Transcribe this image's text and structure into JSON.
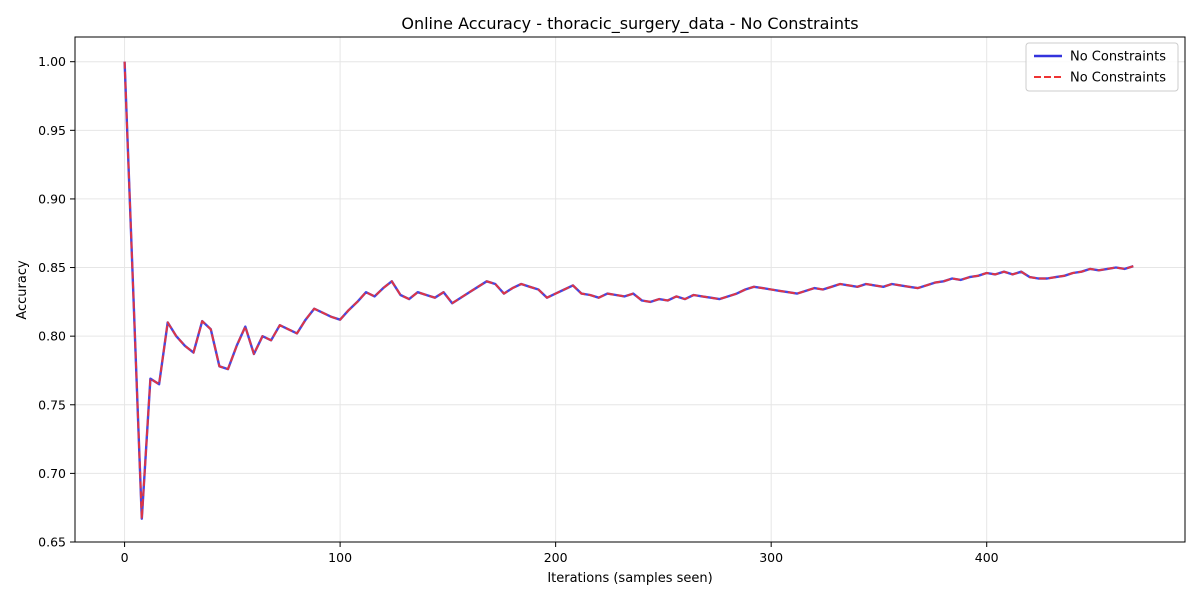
{
  "chart_data": {
    "type": "line",
    "title": "Online Accuracy - thoracic_surgery_data - No Constraints",
    "xlabel": "Iterations (samples seen)",
    "ylabel": "Accuracy",
    "xlim": [
      -23,
      492
    ],
    "ylim": [
      0.65,
      1.018
    ],
    "xticks": [
      0,
      100,
      200,
      300,
      400
    ],
    "yticks": [
      0.65,
      0.7,
      0.75,
      0.8,
      0.85,
      0.9,
      0.95,
      1.0
    ],
    "ytick_labels": [
      "0.65",
      "0.70",
      "0.75",
      "0.80",
      "0.85",
      "0.90",
      "0.95",
      "1.00"
    ],
    "grid": true,
    "legend_position": "top-right",
    "series": [
      {
        "name": "No Constraints",
        "color": "#3333dd",
        "style": "solid",
        "x": [
          0,
          8,
          12,
          16,
          20,
          24,
          28,
          32,
          36,
          40,
          44,
          48,
          52,
          56,
          60,
          64,
          68,
          72,
          76,
          80,
          84,
          88,
          92,
          96,
          100,
          104,
          108,
          112,
          116,
          120,
          124,
          128,
          132,
          136,
          140,
          144,
          148,
          152,
          156,
          160,
          164,
          168,
          172,
          176,
          180,
          184,
          188,
          192,
          196,
          200,
          204,
          208,
          212,
          216,
          220,
          224,
          228,
          232,
          236,
          240,
          244,
          248,
          252,
          256,
          260,
          264,
          268,
          272,
          276,
          280,
          284,
          288,
          292,
          296,
          300,
          304,
          308,
          312,
          316,
          320,
          324,
          328,
          332,
          336,
          340,
          344,
          348,
          352,
          356,
          360,
          364,
          368,
          372,
          376,
          380,
          384,
          388,
          392,
          396,
          400,
          404,
          408,
          412,
          416,
          420,
          424,
          428,
          432,
          436,
          440,
          444,
          448,
          452,
          456,
          460,
          464,
          468
        ],
        "values": [
          1.0,
          0.667,
          0.769,
          0.765,
          0.81,
          0.8,
          0.793,
          0.788,
          0.811,
          0.805,
          0.778,
          0.776,
          0.793,
          0.807,
          0.787,
          0.8,
          0.797,
          0.808,
          0.805,
          0.802,
          0.812,
          0.82,
          0.817,
          0.814,
          0.812,
          0.819,
          0.825,
          0.832,
          0.829,
          0.835,
          0.84,
          0.83,
          0.827,
          0.832,
          0.83,
          0.828,
          0.832,
          0.824,
          0.828,
          0.832,
          0.836,
          0.84,
          0.838,
          0.831,
          0.835,
          0.838,
          0.836,
          0.834,
          0.828,
          0.831,
          0.834,
          0.837,
          0.831,
          0.83,
          0.828,
          0.831,
          0.83,
          0.829,
          0.831,
          0.826,
          0.825,
          0.827,
          0.826,
          0.829,
          0.827,
          0.83,
          0.829,
          0.828,
          0.827,
          0.829,
          0.831,
          0.834,
          0.836,
          0.835,
          0.834,
          0.833,
          0.832,
          0.831,
          0.833,
          0.835,
          0.834,
          0.836,
          0.838,
          0.837,
          0.836,
          0.838,
          0.837,
          0.836,
          0.838,
          0.837,
          0.836,
          0.835,
          0.837,
          0.839,
          0.84,
          0.842,
          0.841,
          0.843,
          0.844,
          0.846,
          0.845,
          0.847,
          0.845,
          0.847,
          0.843,
          0.842,
          0.842,
          0.843,
          0.844,
          0.846,
          0.847,
          0.849,
          0.848,
          0.849,
          0.85,
          0.849,
          0.851
        ]
      },
      {
        "name": "No Constraints",
        "color": "#ee3333",
        "style": "dashed",
        "x": [
          0,
          8,
          12,
          16,
          20,
          24,
          28,
          32,
          36,
          40,
          44,
          48,
          52,
          56,
          60,
          64,
          68,
          72,
          76,
          80,
          84,
          88,
          92,
          96,
          100,
          104,
          108,
          112,
          116,
          120,
          124,
          128,
          132,
          136,
          140,
          144,
          148,
          152,
          156,
          160,
          164,
          168,
          172,
          176,
          180,
          184,
          188,
          192,
          196,
          200,
          204,
          208,
          212,
          216,
          220,
          224,
          228,
          232,
          236,
          240,
          244,
          248,
          252,
          256,
          260,
          264,
          268,
          272,
          276,
          280,
          284,
          288,
          292,
          296,
          300,
          304,
          308,
          312,
          316,
          320,
          324,
          328,
          332,
          336,
          340,
          344,
          348,
          352,
          356,
          360,
          364,
          368,
          372,
          376,
          380,
          384,
          388,
          392,
          396,
          400,
          404,
          408,
          412,
          416,
          420,
          424,
          428,
          432,
          436,
          440,
          444,
          448,
          452,
          456,
          460,
          464,
          468
        ],
        "values": [
          1.0,
          0.667,
          0.769,
          0.765,
          0.81,
          0.8,
          0.793,
          0.788,
          0.811,
          0.805,
          0.778,
          0.776,
          0.793,
          0.807,
          0.787,
          0.8,
          0.797,
          0.808,
          0.805,
          0.802,
          0.812,
          0.82,
          0.817,
          0.814,
          0.812,
          0.819,
          0.825,
          0.832,
          0.829,
          0.835,
          0.84,
          0.83,
          0.827,
          0.832,
          0.83,
          0.828,
          0.832,
          0.824,
          0.828,
          0.832,
          0.836,
          0.84,
          0.838,
          0.831,
          0.835,
          0.838,
          0.836,
          0.834,
          0.828,
          0.831,
          0.834,
          0.837,
          0.831,
          0.83,
          0.828,
          0.831,
          0.83,
          0.829,
          0.831,
          0.826,
          0.825,
          0.827,
          0.826,
          0.829,
          0.827,
          0.83,
          0.829,
          0.828,
          0.827,
          0.829,
          0.831,
          0.834,
          0.836,
          0.835,
          0.834,
          0.833,
          0.832,
          0.831,
          0.833,
          0.835,
          0.834,
          0.836,
          0.838,
          0.837,
          0.836,
          0.838,
          0.837,
          0.836,
          0.838,
          0.837,
          0.836,
          0.835,
          0.837,
          0.839,
          0.84,
          0.842,
          0.841,
          0.843,
          0.844,
          0.846,
          0.845,
          0.847,
          0.845,
          0.847,
          0.843,
          0.842,
          0.842,
          0.843,
          0.844,
          0.846,
          0.847,
          0.849,
          0.848,
          0.849,
          0.85,
          0.849,
          0.851
        ]
      }
    ]
  }
}
